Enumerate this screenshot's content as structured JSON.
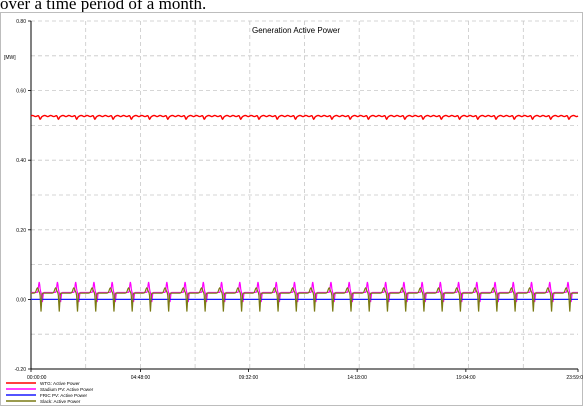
{
  "caption": "over a time period of a month.",
  "chart_data": {
    "type": "line",
    "title": "Generation Active Power",
    "ylabel": "[MW]",
    "xlabel": "",
    "ylim": [
      -0.2,
      0.8
    ],
    "yticks": [
      -0.2,
      0.0,
      0.2,
      0.4,
      0.6,
      0.8
    ],
    "ytick_labels": [
      "-0.20",
      "0.00",
      "0.20",
      "0.40",
      "0.60",
      "0.80"
    ],
    "xlim": [
      0,
      23.9833
    ],
    "xticks": [
      0,
      4.8,
      9.5333,
      14.3,
      19.0667,
      23.9833
    ],
    "xtick_labels": [
      "00:00:00",
      "04:48:00",
      "09:32:00",
      "14:18:00",
      "19:04:00",
      "23:59:0"
    ],
    "grid": true,
    "legend_position": "bottom-left",
    "series": [
      {
        "name": "WTG: Active Power",
        "color": "#ff0000",
        "pattern": "flat_dips",
        "base": 0.527,
        "dip": 0.009,
        "cycles": 30
      },
      {
        "name": "Stadium PV: Active Power",
        "color": "#ff00ff",
        "pattern": "daily_peaks",
        "base": 0.02,
        "peak": 0.05,
        "low": -0.008,
        "cycles": 30
      },
      {
        "name": "FRIC PV: Active Power",
        "color": "#1a1aff",
        "pattern": "flat",
        "base": 0.0,
        "cycles": 30
      },
      {
        "name": "Slack: Active Power",
        "color": "#7a7a14",
        "pattern": "slack_swing",
        "base": 0.018,
        "high": 0.033,
        "low": -0.035,
        "cycles": 30
      }
    ]
  }
}
